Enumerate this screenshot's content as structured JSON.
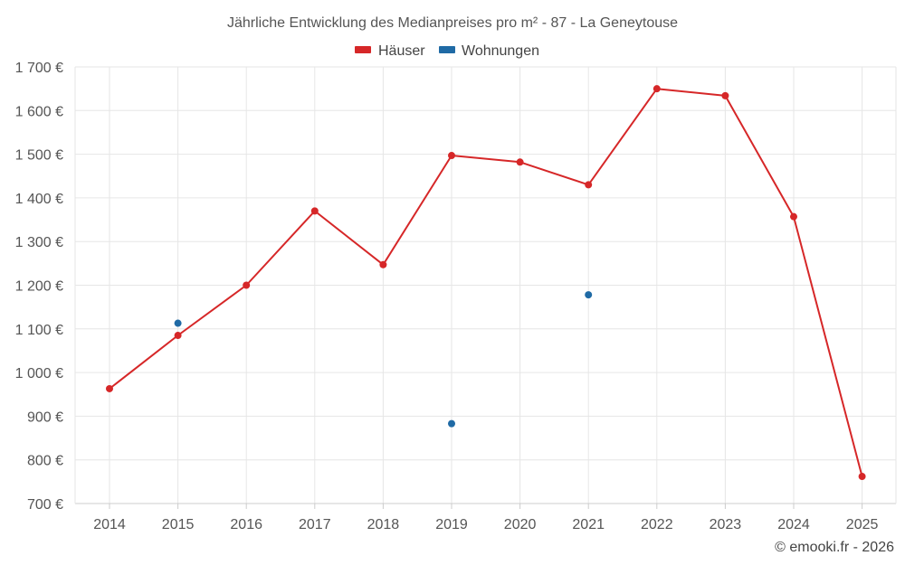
{
  "chart_data": {
    "type": "line",
    "title": "Jährliche Entwicklung des Medianpreises pro m² - 87 - La Geneytouse",
    "categories": [
      "2014",
      "2015",
      "2016",
      "2017",
      "2018",
      "2019",
      "2020",
      "2021",
      "2022",
      "2023",
      "2024",
      "2025"
    ],
    "series": [
      {
        "name": "Häuser",
        "color": "#d62728",
        "style": "line",
        "values": [
          963,
          1085,
          1200,
          1370,
          1247,
          1497,
          1482,
          1430,
          1650,
          1634,
          1357,
          762
        ]
      },
      {
        "name": "Wohnungen",
        "color": "#1f6aa5",
        "style": "markers",
        "values": [
          null,
          1113,
          null,
          null,
          null,
          883,
          null,
          1178,
          null,
          null,
          null,
          null
        ]
      }
    ],
    "ylim": [
      700,
      1700
    ],
    "yticks": [
      700,
      800,
      900,
      1000,
      1100,
      1200,
      1300,
      1400,
      1500,
      1600,
      1700
    ],
    "ytick_labels": [
      "700 €",
      "800 €",
      "900 €",
      "1 000 €",
      "1 100 €",
      "1 200 €",
      "1 300 €",
      "1 400 €",
      "1 500 €",
      "1 600 €",
      "1 700 €"
    ],
    "xlabel": "",
    "ylabel": "",
    "grid": true,
    "legend_position": "top-center"
  },
  "credit": "© emooki.fr - 2026"
}
